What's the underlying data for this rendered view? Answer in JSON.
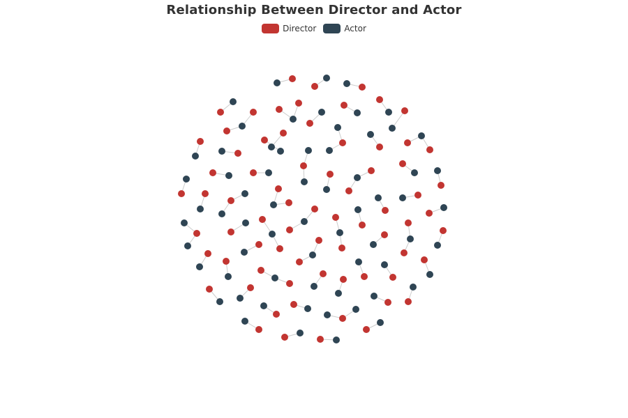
{
  "chart_data": {
    "type": "network",
    "title": "Relationship Between Director and Actor",
    "categories": [
      {
        "name": "Director",
        "color": "#c23531"
      },
      {
        "name": "Actor",
        "color": "#2f4554"
      }
    ],
    "edge_color": "#cccccc"
  }
}
